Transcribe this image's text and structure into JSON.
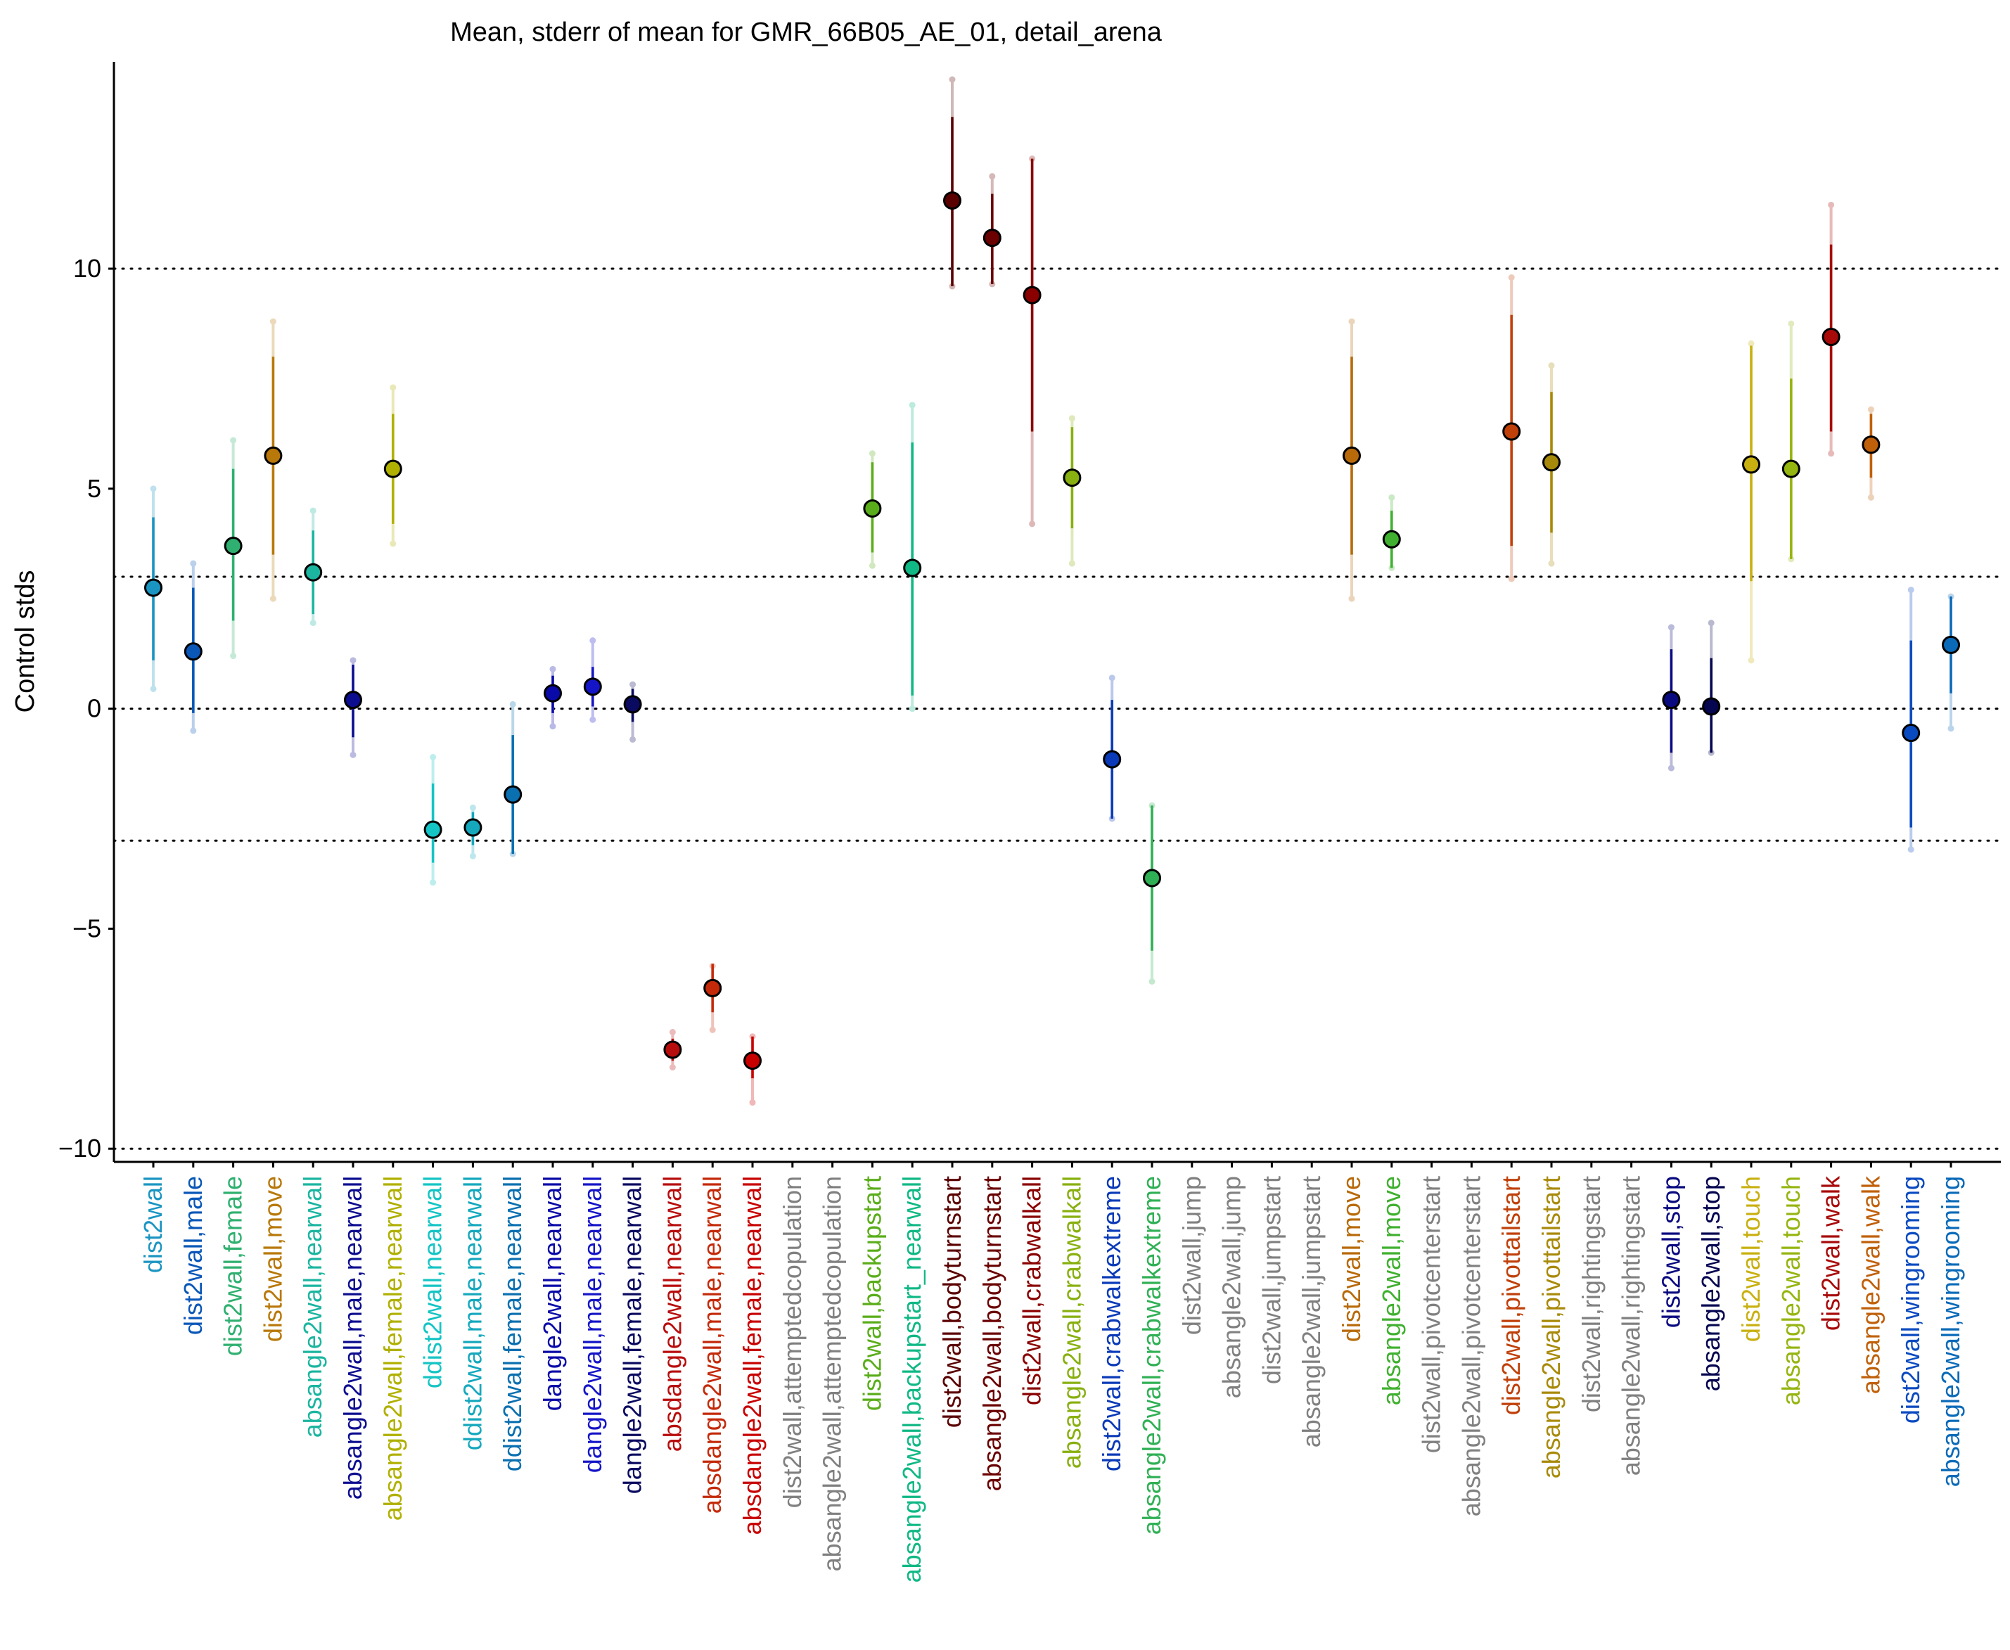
{
  "chart_data": {
    "type": "scatter",
    "title": "Mean, stderr of mean for GMR_66B05_AE_01, detail_arena",
    "xlabel": "",
    "ylabel": "Control stds",
    "ylim": [
      -10.3,
      14.7
    ],
    "yticks": [
      -10,
      -5,
      0,
      5,
      10
    ],
    "ytick_labels": [
      "−10",
      "−5",
      "0",
      "5",
      "10"
    ],
    "reference_lines": [
      -10,
      -3,
      0,
      3,
      10
    ],
    "grid": false,
    "categories": [
      "dist2wall",
      "dist2wall,male",
      "dist2wall,female",
      "dist2wall,move",
      "absangle2wall,nearwall",
      "absangle2wall,male,nearwall",
      "absangle2wall,female,nearwall",
      "ddist2wall,nearwall",
      "ddist2wall,male,nearwall",
      "ddist2wall,female,nearwall",
      "dangle2wall,nearwall",
      "dangle2wall,male,nearwall",
      "dangle2wall,female,nearwall",
      "absdangle2wall,nearwall",
      "absdangle2wall,male,nearwall",
      "absdangle2wall,female,nearwall",
      "dist2wall,attemptedcopulation",
      "absangle2wall,attemptedcopulation",
      "dist2wall,backupstart",
      "absangle2wall,backupstart_nearwall",
      "dist2wall,bodyturnstart",
      "absangle2wall,bodyturnstart",
      "dist2wall,crabwalkall",
      "absangle2wall,crabwalkall",
      "dist2wall,crabwalkextreme",
      "absangle2wall,crabwalkextreme",
      "dist2wall,jump",
      "absangle2wall,jump",
      "dist2wall,jumpstart",
      "absangle2wall,jumpstart",
      "dist2wall,move",
      "absangle2wall,move",
      "dist2wall,pivotcenterstart",
      "absangle2wall,pivotcenterstart",
      "dist2wall,pivottailstart",
      "absangle2wall,pivottailstart",
      "dist2wall,rightingstart",
      "absangle2wall,rightingstart",
      "dist2wall,stop",
      "absangle2wall,stop",
      "dist2wall,touch",
      "absangle2wall,touch",
      "dist2wall,walk",
      "absangle2wall,walk",
      "dist2wall,wingrooming",
      "absangle2wall,wingrooming"
    ],
    "label_colors": [
      "#1a95c2",
      "#0a57b8",
      "#2fb070",
      "#b8780a",
      "#1bb5a0",
      "#0d0d90",
      "#b0b000",
      "#15c4c4",
      "#15a8bd",
      "#0a70b0",
      "#0a0aa8",
      "#1515c8",
      "#0a0a60",
      "#b80d0d",
      "#c42a0a",
      "#c80000",
      "#808080",
      "#808080",
      "#5aad1a",
      "#10b885",
      "#5a0000",
      "#6a0000",
      "#8a0000",
      "#88b010",
      "#0a3ab8",
      "#30b055",
      "#808080",
      "#808080",
      "#808080",
      "#808080",
      "#b86a0a",
      "#40b030",
      "#808080",
      "#808080",
      "#c0400a",
      "#a88a0a",
      "#808080",
      "#808080",
      "#0a0a80",
      "#050550",
      "#c8b010",
      "#95b510",
      "#a80a0a",
      "#c0600a",
      "#0a4ac0",
      "#0a6ab8"
    ],
    "marker_colors": [
      "#1a95c2",
      "#0a57b8",
      "#2fb070",
      "#b8780a",
      "#1bb5a0",
      "#0d0d90",
      "#b0b000",
      "#15c4c4",
      "#15a8bd",
      "#0a70b0",
      "#0a0aa8",
      "#1515c8",
      "#0a0a60",
      "#b80d0d",
      "#c42a0a",
      "#c80000",
      null,
      null,
      "#5aad1a",
      "#10b885",
      "#5a0000",
      "#6a0000",
      "#8a0000",
      "#88b010",
      "#0a3ab8",
      "#30b055",
      null,
      null,
      null,
      null,
      "#b86a0a",
      "#40b030",
      null,
      null,
      "#c0400a",
      "#a88a0a",
      null,
      null,
      "#0a0a80",
      "#050550",
      "#c8b010",
      "#95b510",
      "#a80a0a",
      "#c0600a",
      "#0a4ac0",
      "#0a6ab8"
    ],
    "mean": [
      2.75,
      1.3,
      3.7,
      5.75,
      3.1,
      0.2,
      5.45,
      -2.75,
      -2.7,
      -1.95,
      0.35,
      0.5,
      0.1,
      -7.75,
      -6.35,
      -8.0,
      null,
      null,
      4.55,
      3.2,
      11.55,
      10.7,
      9.4,
      5.25,
      -1.15,
      -3.85,
      null,
      null,
      null,
      null,
      5.75,
      3.85,
      null,
      null,
      6.3,
      5.6,
      null,
      null,
      0.2,
      0.05,
      5.55,
      5.45,
      8.45,
      6.0,
      -0.55,
      1.45
    ],
    "stderr_low": [
      1.1,
      -0.1,
      2.0,
      3.5,
      2.15,
      -0.65,
      4.2,
      -3.5,
      -3.1,
      -3.3,
      -0.1,
      0.05,
      -0.3,
      -8.0,
      -6.9,
      -8.4,
      null,
      null,
      3.55,
      0.3,
      9.6,
      9.65,
      6.3,
      4.1,
      -2.5,
      -5.5,
      null,
      null,
      null,
      null,
      3.5,
      3.2,
      null,
      null,
      3.7,
      4.0,
      null,
      null,
      -1.0,
      -1.0,
      2.9,
      3.4,
      6.3,
      5.25,
      -2.7,
      0.35
    ],
    "stderr_high": [
      4.35,
      2.75,
      5.45,
      8.0,
      4.05,
      1.0,
      6.7,
      -1.7,
      -2.35,
      -0.6,
      0.75,
      0.95,
      0.45,
      -7.5,
      -5.8,
      -7.45,
      null,
      null,
      5.6,
      6.05,
      13.45,
      11.7,
      12.5,
      6.4,
      0.2,
      -2.2,
      null,
      null,
      null,
      null,
      8.0,
      4.5,
      null,
      null,
      8.95,
      7.2,
      null,
      null,
      1.35,
      1.15,
      8.25,
      7.5,
      10.55,
      6.7,
      1.55,
      2.55
    ],
    "range_low": [
      0.45,
      -0.5,
      1.2,
      2.5,
      1.95,
      -1.05,
      3.75,
      -3.95,
      -3.35,
      -3.3,
      -0.4,
      -0.25,
      -0.7,
      -8.15,
      -7.3,
      -8.95,
      null,
      null,
      3.25,
      0.0,
      9.6,
      9.65,
      4.2,
      3.3,
      -2.5,
      -6.2,
      null,
      null,
      null,
      null,
      2.5,
      3.2,
      null,
      null,
      2.95,
      3.3,
      null,
      null,
      -1.35,
      -1.0,
      1.1,
      3.4,
      5.8,
      4.8,
      -3.2,
      -0.45
    ],
    "range_high": [
      5.0,
      3.3,
      6.1,
      8.8,
      4.5,
      1.1,
      7.3,
      -1.1,
      -2.25,
      0.1,
      0.9,
      1.55,
      0.55,
      -7.35,
      -5.85,
      -7.45,
      null,
      null,
      5.8,
      6.9,
      14.3,
      12.1,
      12.5,
      6.6,
      0.7,
      -2.2,
      null,
      null,
      null,
      null,
      8.8,
      4.8,
      null,
      null,
      9.8,
      7.8,
      null,
      null,
      1.85,
      1.95,
      8.3,
      8.75,
      11.45,
      6.8,
      2.7,
      2.55
    ]
  }
}
